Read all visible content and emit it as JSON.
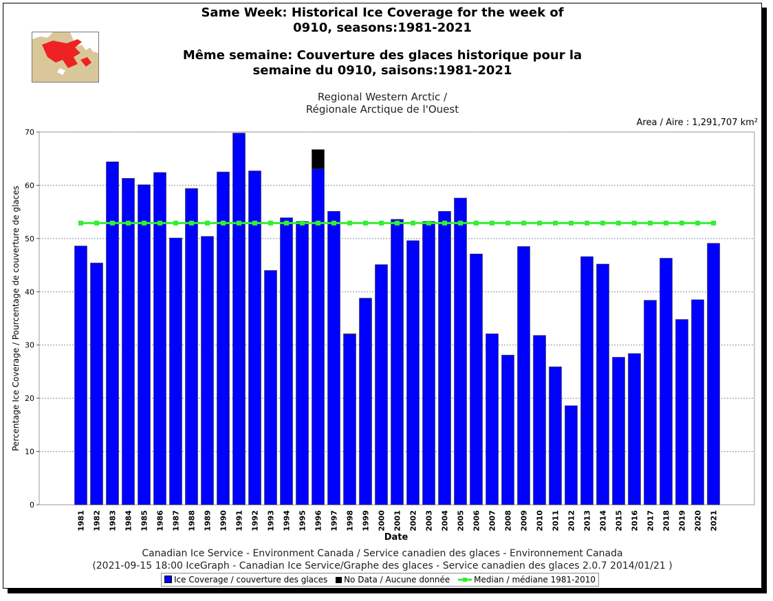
{
  "titles": {
    "en_line1": "Same Week: Historical Ice Coverage for the week of",
    "en_line2": "0910, seasons:1981-2021",
    "fr_line1": "Même semaine: Couverture des glaces historique pour la",
    "fr_line2": "semaine du 0910, saisons:1981-2021"
  },
  "region": {
    "line1": "Regional Western Arctic /",
    "line2": "Régionale Arctique de l'Ouest"
  },
  "area_label": "Area / Aire : 1,291,707 km²",
  "credits": {
    "line1": "Canadian Ice Service - Environment Canada / Service canadien des glaces - Environnement Canada",
    "line2": "(2021-09-15 18:00 IceGraph - Canadian Ice Service/Graphe des glaces - Service canadien des glaces 2.0.7 2014/01/21 )"
  },
  "legend": {
    "ice": "Ice Coverage / couverture des glaces",
    "nodata": "No Data / Aucune donnée",
    "median": "Median / médiane 1981-2010"
  },
  "colors": {
    "ice": "#0000ff",
    "nodata": "#000000",
    "median": "#33ee33"
  },
  "chart_data": {
    "type": "bar",
    "xlabel": "Date",
    "ylabel": "Percentage Ice Coverage / Pourcentage de couverture de glaces",
    "ylim": [
      0,
      70
    ],
    "yticks": [
      0,
      10,
      20,
      30,
      40,
      50,
      60,
      70
    ],
    "grid": true,
    "categories": [
      "1981",
      "1982",
      "1983",
      "1984",
      "1985",
      "1986",
      "1987",
      "1988",
      "1989",
      "1990",
      "1991",
      "1992",
      "1993",
      "1994",
      "1995",
      "1996",
      "1997",
      "1998",
      "1999",
      "2000",
      "2001",
      "2002",
      "2003",
      "2004",
      "2005",
      "2006",
      "2007",
      "2008",
      "2009",
      "2010",
      "2011",
      "2012",
      "2013",
      "2014",
      "2015",
      "2016",
      "2017",
      "2018",
      "2019",
      "2020",
      "2021"
    ],
    "series": [
      {
        "name": "Ice Coverage / couverture des glaces",
        "values": [
          48.6,
          45.4,
          64.4,
          61.3,
          60.1,
          62.4,
          50.1,
          59.4,
          50.4,
          62.5,
          69.8,
          62.7,
          44.0,
          53.9,
          53.2,
          63.1,
          55.1,
          32.0,
          38.8,
          45.1,
          53.6,
          49.6,
          53.2,
          55.1,
          57.6,
          47.1,
          32.1,
          28.1,
          48.5,
          31.8,
          25.9,
          18.6,
          46.6,
          45.2,
          27.7,
          28.4,
          38.4,
          46.3,
          34.8,
          38.5,
          49.1
        ]
      },
      {
        "name": "No Data / Aucune donnée",
        "values": [
          0,
          0,
          0,
          0,
          0,
          0,
          0,
          0,
          0,
          0,
          0,
          0,
          0,
          0,
          0,
          3.6,
          0,
          0.1,
          0,
          0,
          0,
          0,
          0,
          0,
          0,
          0,
          0,
          0,
          0,
          0,
          0,
          0,
          0,
          0,
          0,
          0,
          0,
          0,
          0,
          0,
          0
        ]
      },
      {
        "name": "Median / médiane 1981-2010",
        "type": "line",
        "value": 52.9
      }
    ]
  }
}
